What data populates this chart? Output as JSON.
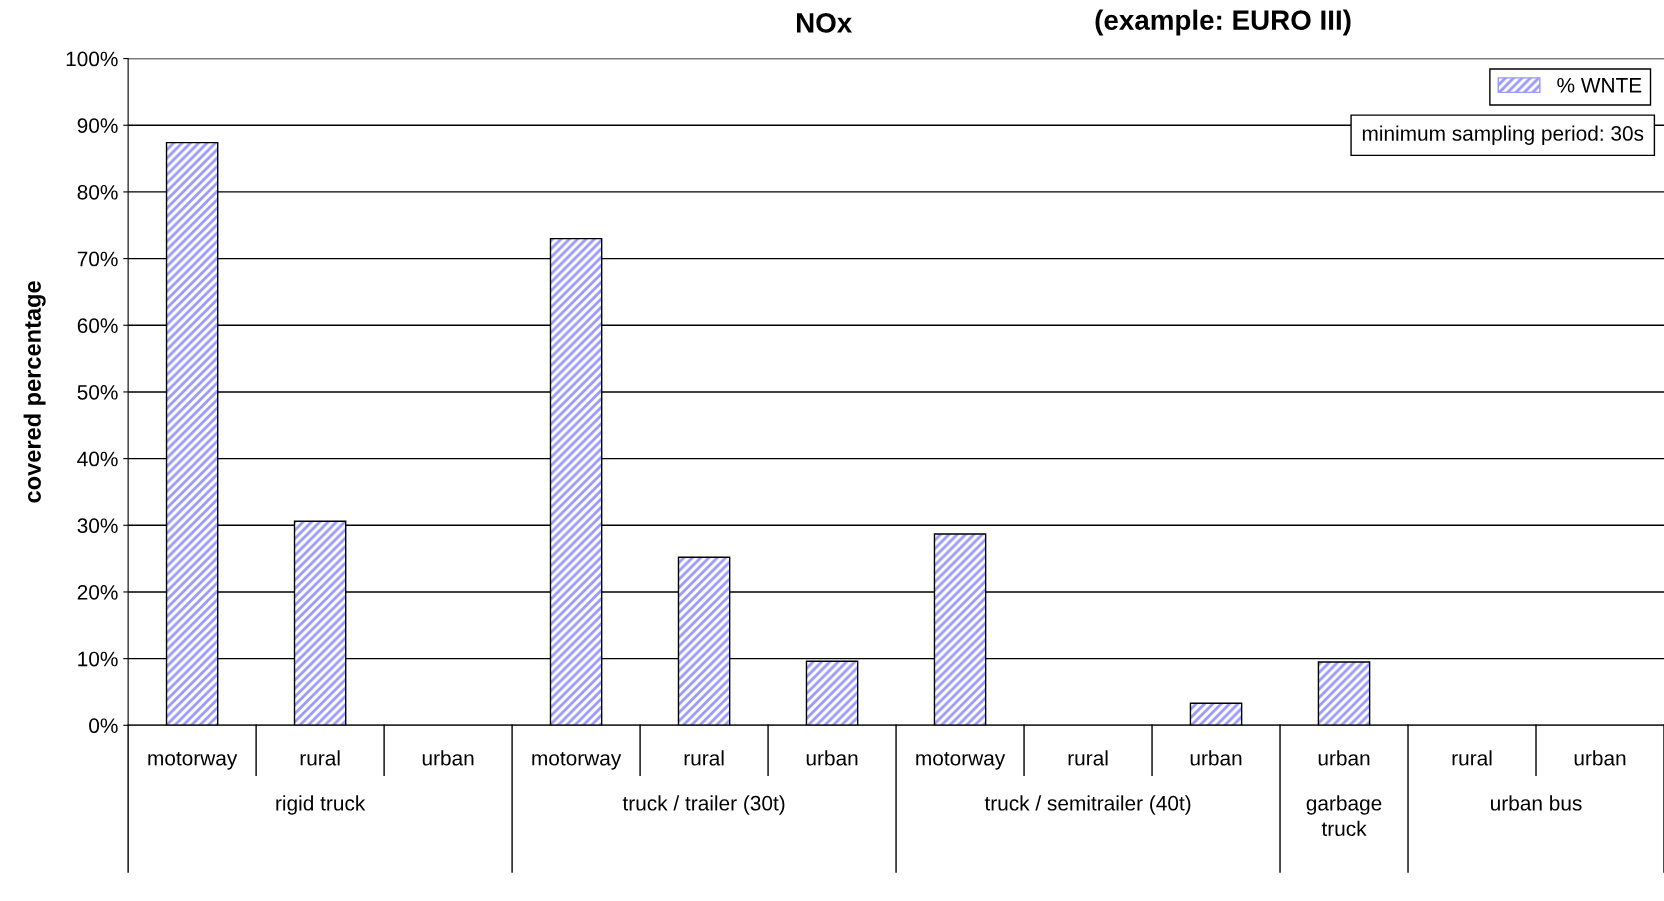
{
  "chart_data": {
    "type": "bar",
    "title": "NOx",
    "subtitle": "(example: EURO III)",
    "ylabel": "covered percentage",
    "categories": [
      "motorway",
      "rural",
      "urban",
      "motorway",
      "rural",
      "urban",
      "motorway",
      "rural",
      "urban",
      "urban",
      "rural",
      "urban"
    ],
    "series": [
      {
        "name": "% WNTE",
        "color": "#9999ff",
        "values": [
          87.4,
          30.6,
          null,
          73.0,
          25.2,
          9.6,
          28.7,
          null,
          3.3,
          9.5,
          null,
          null
        ]
      }
    ],
    "annotations": [
      "minimum sampling period: 30s",
      "rigid truck",
      "truck / trailer (30t)",
      "truck / semitrailer (40t)",
      "garbage truck",
      "urban bus"
    ],
    "ylim": [
      0,
      100
    ],
    "yticks": [
      {
        "value": 0,
        "label": "0%"
      },
      {
        "value": 10,
        "label": "10%"
      },
      {
        "value": 20,
        "label": "20%"
      },
      {
        "value": 30,
        "label": "30%"
      },
      {
        "value": 40,
        "label": "40%"
      },
      {
        "value": 50,
        "label": "50%"
      },
      {
        "value": 60,
        "label": "60%"
      },
      {
        "value": 70,
        "label": "70%"
      },
      {
        "value": 80,
        "label": "80%"
      },
      {
        "value": 90,
        "label": "90%"
      },
      {
        "value": 100,
        "label": "100%"
      }
    ],
    "grid": "y",
    "legend": "top right"
  }
}
